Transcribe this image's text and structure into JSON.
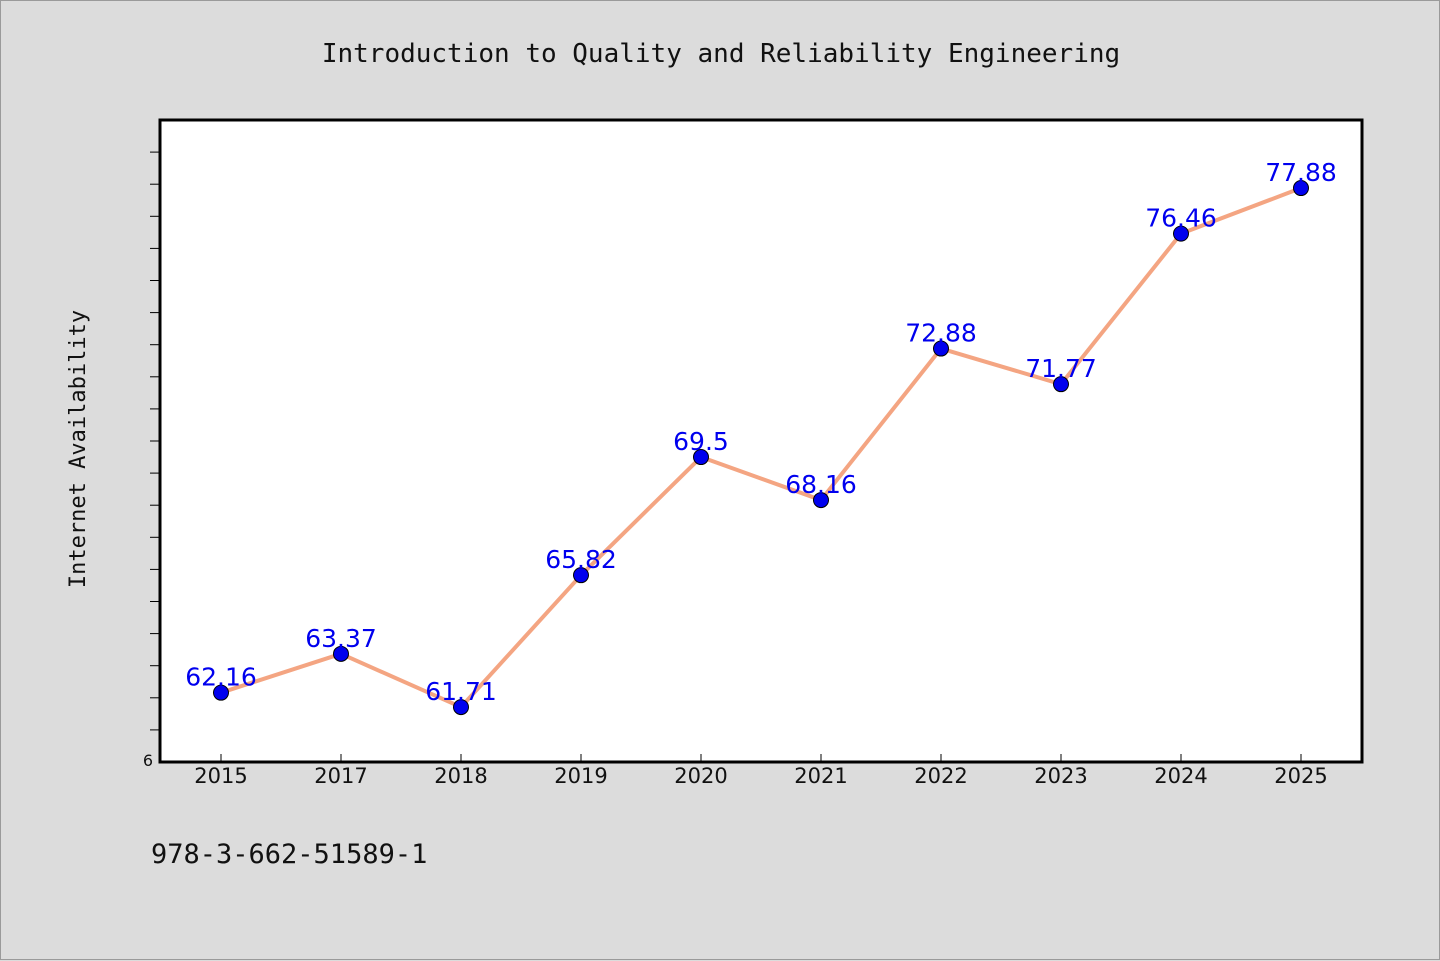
{
  "chart_data": {
    "type": "line",
    "title": "Introduction to Quality and Reliability Engineering",
    "ylabel": "Internet Availability",
    "xlabel": "",
    "categories": [
      "2015",
      "2017",
      "2018",
      "2019",
      "2020",
      "2021",
      "2022",
      "2023",
      "2024",
      "2025"
    ],
    "series": [
      {
        "values": [
          62.16,
          63.37,
          61.71,
          65.82,
          69.5,
          68.16,
          72.88,
          71.77,
          76.46,
          77.88
        ]
      }
    ],
    "data_labels": [
      "62.16",
      "63.37",
      "61.71",
      "65.82",
      "69.5",
      "68.16",
      "72.88",
      "71.77",
      "76.46",
      "77.88"
    ],
    "ylim": [
      60,
      80
    ],
    "y_tick_labels": [
      "6"
    ],
    "y_minor_ticks": true,
    "grid": false,
    "legend": "none",
    "colors": {
      "line": "#f4a582",
      "marker": "#0000ee",
      "label": "#0000ee",
      "background": "#dcdcdc",
      "plot_background": "#ffffff"
    }
  },
  "footer": {
    "isbn": "978-3-662-51589-1"
  }
}
